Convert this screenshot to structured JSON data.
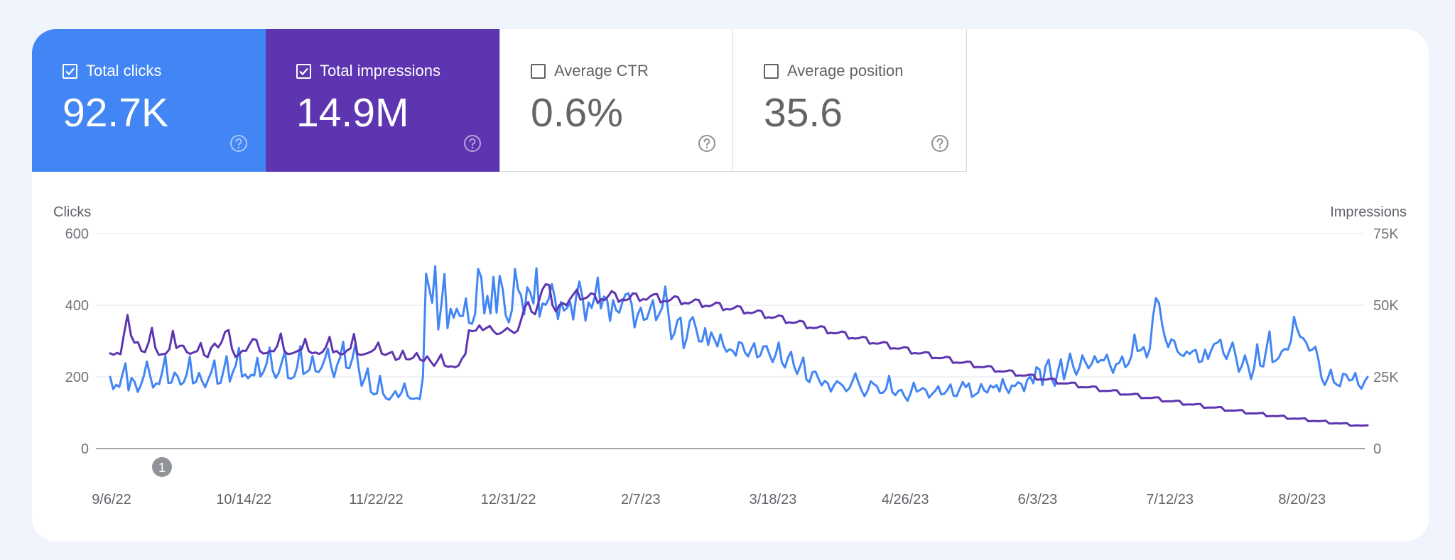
{
  "metrics": [
    {
      "label": "Total clicks",
      "value": "92.7K",
      "checked": true,
      "color": "#4285f4"
    },
    {
      "label": "Total impressions",
      "value": "14.9M",
      "checked": true,
      "color": "#5e35b1"
    },
    {
      "label": "Average CTR",
      "value": "0.6%",
      "checked": false,
      "color": "#ffffff"
    },
    {
      "label": "Average position",
      "value": "35.6",
      "checked": false,
      "color": "#ffffff"
    }
  ],
  "icons": {
    "checkbox": "checkbox-icon",
    "help": "help-circle-icon"
  },
  "annotation_marker": "1",
  "chart_data": {
    "type": "line",
    "y_left_label": "Clicks",
    "y_right_label": "Impressions",
    "y_left_ticks": [
      "600",
      "400",
      "200",
      "0"
    ],
    "y_right_ticks": [
      "75K",
      "50K",
      "25K",
      "0"
    ],
    "y_left_range": [
      0,
      600
    ],
    "y_right_range": [
      0,
      75000
    ],
    "x_tick_labels": [
      "9/6/22",
      "10/14/22",
      "11/22/22",
      "12/31/22",
      "2/7/23",
      "3/18/23",
      "4/26/23",
      "6/3/23",
      "7/12/23",
      "8/20/23"
    ],
    "grid": true,
    "series": [
      {
        "name": "Clicks",
        "axis": "left",
        "color": "#4285f4",
        "values": [
          200,
          166,
          178,
          172,
          207,
          238,
          162,
          197,
          186,
          158,
          177,
          203,
          243,
          205,
          170,
          182,
          180,
          214,
          259,
          183,
          184,
          212,
          202,
          178,
          185,
          208,
          256,
          182,
          186,
          211,
          188,
          171,
          193,
          214,
          246,
          181,
          183,
          218,
          258,
          187,
          213,
          233,
          281,
          201,
          207,
          196,
          206,
          204,
          253,
          201,
          214,
          237,
          282,
          218,
          197,
          211,
          242,
          271,
          197,
          195,
          200,
          228,
          286,
          208,
          213,
          220,
          258,
          216,
          213,
          227,
          250,
          279,
          231,
          199,
          233,
          254,
          298,
          226,
          224,
          251,
          293,
          226,
          175,
          195,
          224,
          158,
          151,
          154,
          203,
          153,
          140,
          136,
          148,
          160,
          143,
          156,
          182,
          147,
          139,
          139,
          141,
          138,
          200,
          488,
          448,
          407,
          509,
          332,
          400,
          487,
          336,
          390,
          365,
          390,
          370,
          370,
          419,
          351,
          348,
          375,
          501,
          478,
          377,
          426,
          377,
          479,
          379,
          482,
          445,
          371,
          352,
          386,
          501,
          444,
          427,
          374,
          450,
          435,
          405,
          503,
          368,
          405,
          401,
          417,
          459,
          421,
          361,
          409,
          385,
          392,
          409,
          360,
          427,
          466,
          423,
          357,
          408,
          392,
          423,
          477,
          391,
          424,
          417,
          356,
          414,
          386,
          379,
          408,
          430,
          433,
          405,
          338,
          373,
          393,
          359,
          362,
          389,
          414,
          358,
          375,
          393,
          452,
          379,
          305,
          322,
          358,
          365,
          280,
          308,
          356,
          367,
          336,
          299,
          299,
          336,
          289,
          324,
          305,
          285,
          319,
          287,
          270,
          277,
          273,
          259,
          297,
          294,
          268,
          257,
          277,
          294,
          254,
          260,
          285,
          286,
          262,
          241,
          262,
          296,
          241,
          226,
          253,
          270,
          230,
          208,
          230,
          254,
          193,
          185,
          213,
          215,
          194,
          176,
          189,
          182,
          159,
          176,
          188,
          182,
          174,
          160,
          168,
          187,
          210,
          184,
          162,
          146,
          162,
          188,
          180,
          174,
          155,
          156,
          166,
          203,
          158,
          149,
          161,
          164,
          146,
          133,
          155,
          184,
          159,
          163,
          169,
          163,
          142,
          152,
          161,
          174,
          151,
          153,
          164,
          179,
          148,
          146,
          167,
          186,
          171,
          182,
          144,
          150,
          156,
          180,
          162,
          156,
          176,
          170,
          177,
          159,
          194,
          170,
          155,
          176,
          174,
          185,
          181,
          160,
          191,
          201,
          182,
          227,
          221,
          177,
          230,
          248,
          195,
          175,
          215,
          249,
          193,
          227,
          265,
          229,
          206,
          225,
          260,
          241,
          224,
          236,
          258,
          240,
          247,
          246,
          262,
          233,
          211,
          235,
          239,
          257,
          227,
          236,
          259,
          318,
          272,
          274,
          283,
          254,
          279,
          367,
          420,
          406,
          346,
          307,
          283,
          305,
          300,
          271,
          262,
          258,
          271,
          264,
          272,
          275,
          241,
          244,
          276,
          250,
          274,
          292,
          295,
          304,
          266,
          250,
          274,
          296,
          258,
          214,
          231,
          260,
          231,
          194,
          226,
          291,
          231,
          229,
          278,
          327,
          241,
          245,
          253,
          271,
          278,
          276,
          300,
          368,
          334,
          312,
          308,
          295,
          273,
          276,
          284,
          247,
          196,
          177,
          196,
          220,
          185,
          178,
          174,
          209,
          206,
          190,
          192,
          211,
          178,
          167,
          187,
          200
        ]
      },
      {
        "name": "Impressions",
        "axis": "right",
        "color": "#5e35b1",
        "values": [
          33229,
          32722,
          33373,
          32894,
          40045,
          46582,
          39426,
          36910,
          37092,
          34019,
          33626,
          36779,
          42081,
          35106,
          32658,
          32923,
          33096,
          34658,
          41064,
          35061,
          35840,
          35866,
          33652,
          33003,
          33592,
          33967,
          36799,
          32624,
          31837,
          35093,
          36638,
          35282,
          37085,
          40665,
          41359,
          34719,
          31926,
          32907,
          34124,
          34051,
          36301,
          38218,
          37874,
          33998,
          33140,
          33309,
          34057,
          33919,
          35818,
          40136,
          33986,
          32934,
          33124,
          33542,
          34157,
          34694,
          38289,
          33993,
          33232,
          33525,
          32994,
          33708,
          35547,
          38954,
          33581,
          34032,
          32930,
          32991,
          34185,
          34946,
          40010,
          32947,
          32645,
          32924,
          33315,
          33826,
          34716,
          36976,
          33103,
          32645,
          33238,
          33718,
          30925,
          31418,
          34125,
          31193,
          31117,
          31745,
          33342,
          30985,
          30478,
          32169,
          30426,
          28810,
          30643,
          32849,
          29021,
          28507,
          28702,
          28346,
          28882,
          31307,
          32991,
          41239,
          40919,
          41158,
          42939,
          41294,
          42036,
          42736,
          41050,
          39891,
          40160,
          41010,
          42064,
          41112,
          40269,
          41105,
          45010,
          49233,
          51111,
          47712,
          46834,
          51072,
          55212,
          57289,
          57103,
          49986,
          47768,
          50084,
          50718,
          49959,
          52108,
          53773,
          55434,
          51937,
          52223,
          52779,
          54081,
          53826,
          50800,
          52116,
          51816,
          53150,
          54911,
          54132,
          51103,
          52009,
          51723,
          52263,
          54079,
          54001,
          51474,
          52107,
          51922,
          53042,
          53771,
          53880,
          50957,
          51453,
          51296,
          51996,
          53100,
          52847,
          50318,
          50797,
          50596,
          51191,
          52063,
          51818,
          49340,
          49825,
          49622,
          50123,
          50931,
          50713,
          48273,
          48699,
          48493,
          48937,
          49679,
          49465,
          47071,
          47434,
          47215,
          47573,
          48200,
          47914,
          45511,
          45819,
          45580,
          45864,
          46430,
          46148,
          43783,
          44046,
          43806,
          44043,
          44554,
          44289,
          41958,
          42197,
          41981,
          42181,
          42675,
          42434,
          40146,
          40365,
          40166,
          40344,
          40808,
          40582,
          38347,
          38543,
          38359,
          38519,
          38960,
          38751,
          36568,
          36748,
          36581,
          36726,
          37151,
          36962,
          34825,
          34991,
          34839,
          34968,
          35377,
          35208,
          33127,
          33280,
          33142,
          33258,
          33650,
          33498,
          31474,
          31617,
          31494,
          31597,
          31970,
          31834,
          29875,
          30009,
          29899,
          29990,
          30345,
          30225,
          28331,
          28456,
          28359,
          28438,
          28775,
          28668,
          26840,
          26958,
          26873,
          26942,
          27263,
          27170,
          25402,
          25513,
          25440,
          25498,
          25802,
          25723,
          23999,
          24104,
          24043,
          24091,
          24378,
          24312,
          22638,
          22736,
          22686,
          22725,
          22995,
          22942,
          21312,
          21405,
          21365,
          21395,
          21650,
          21610,
          20027,
          20115,
          20085,
          20106,
          20345,
          20317,
          18781,
          18864,
          18844,
          18856,
          19080,
          19064,
          17577,
          17656,
          17645,
          17648,
          17857,
          17852,
          16413,
          16488,
          16487,
          16482,
          16677,
          16683,
          15291,
          15362,
          15371,
          15358,
          15539,
          15555,
          14213,
          14279,
          14298,
          14276,
          14443,
          14468,
          13181,
          13242,
          13270,
          13237,
          13391,
          13425,
          12196,
          12253,
          12289,
          12242,
          12383,
          12425,
          11257,
          11310,
          11354,
          11292,
          11421,
          11471,
          10366,
          10415,
          10467,
          10389,
          10506,
          10564,
          9524,
          9569,
          9628,
          9532,
          9637,
          9702,
          8731,
          8772,
          8838,
          8722,
          8816,
          8887,
          7987,
          8024,
          8097,
          7959,
          8042,
          8120
        ]
      }
    ]
  }
}
